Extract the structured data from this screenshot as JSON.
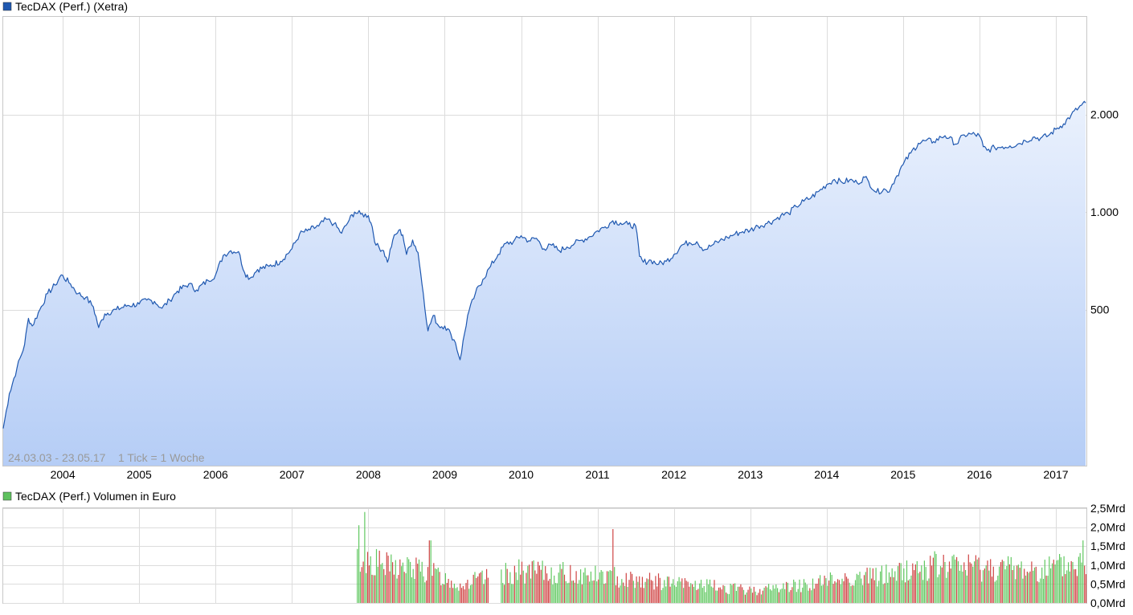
{
  "chart_data": [
    {
      "type": "area",
      "title": "TecDAX (Perf.) (Xetra)",
      "legend_color": "#1f58b0",
      "line_color": "#1f58b0",
      "fill_top": "#eaf1fd",
      "fill_bottom": "#b5cdf6",
      "yscale": "log",
      "ylim": [
        165,
        4000
      ],
      "xlim": [
        2003.22,
        2017.4
      ],
      "y_tick_values": [
        500,
        1000,
        2000
      ],
      "y_tick_labels": [
        "500",
        "1.000",
        "2.000"
      ],
      "x_tick_values": [
        2004,
        2005,
        2006,
        2007,
        2008,
        2009,
        2010,
        2011,
        2012,
        2013,
        2014,
        2015,
        2016,
        2017
      ],
      "x_tick_labels": [
        "2004",
        "2005",
        "2006",
        "2007",
        "2008",
        "2009",
        "2010",
        "2011",
        "2012",
        "2013",
        "2014",
        "2015",
        "2016",
        "2017"
      ],
      "date_range_note": "24.03.03 - 23.05.17",
      "tick_note": "1 Tick = 1 Woche",
      "grid": true,
      "points": [
        [
          2003.22,
          215
        ],
        [
          2003.3,
          275
        ],
        [
          2003.4,
          330
        ],
        [
          2003.5,
          390
        ],
        [
          2003.55,
          470
        ],
        [
          2003.6,
          445
        ],
        [
          2003.7,
          500
        ],
        [
          2003.8,
          560
        ],
        [
          2003.9,
          595
        ],
        [
          2003.98,
          640
        ],
        [
          2004.1,
          600
        ],
        [
          2004.2,
          560
        ],
        [
          2004.3,
          545
        ],
        [
          2004.4,
          510
        ],
        [
          2004.47,
          440
        ],
        [
          2004.55,
          485
        ],
        [
          2004.7,
          500
        ],
        [
          2004.85,
          515
        ],
        [
          2005.0,
          520
        ],
        [
          2005.1,
          535
        ],
        [
          2005.2,
          530
        ],
        [
          2005.3,
          505
        ],
        [
          2005.4,
          535
        ],
        [
          2005.5,
          570
        ],
        [
          2005.65,
          600
        ],
        [
          2005.75,
          575
        ],
        [
          2005.9,
          615
        ],
        [
          2006.0,
          640
        ],
        [
          2006.1,
          735
        ],
        [
          2006.2,
          760
        ],
        [
          2006.3,
          755
        ],
        [
          2006.38,
          650
        ],
        [
          2006.45,
          625
        ],
        [
          2006.55,
          665
        ],
        [
          2006.7,
          680
        ],
        [
          2006.85,
          705
        ],
        [
          2007.0,
          770
        ],
        [
          2007.1,
          855
        ],
        [
          2007.2,
          875
        ],
        [
          2007.35,
          905
        ],
        [
          2007.45,
          950
        ],
        [
          2007.55,
          920
        ],
        [
          2007.65,
          860
        ],
        [
          2007.75,
          945
        ],
        [
          2007.82,
          1000
        ],
        [
          2007.9,
          985
        ],
        [
          2008.0,
          975
        ],
        [
          2008.05,
          900
        ],
        [
          2008.1,
          790
        ],
        [
          2008.2,
          760
        ],
        [
          2008.25,
          700
        ],
        [
          2008.32,
          820
        ],
        [
          2008.4,
          880
        ],
        [
          2008.45,
          850
        ],
        [
          2008.5,
          740
        ],
        [
          2008.58,
          820
        ],
        [
          2008.65,
          750
        ],
        [
          2008.72,
          560
        ],
        [
          2008.78,
          430
        ],
        [
          2008.85,
          480
        ],
        [
          2008.92,
          445
        ],
        [
          2009.0,
          445
        ],
        [
          2009.08,
          420
        ],
        [
          2009.14,
          395
        ],
        [
          2009.2,
          350
        ],
        [
          2009.3,
          480
        ],
        [
          2009.4,
          560
        ],
        [
          2009.5,
          620
        ],
        [
          2009.6,
          680
        ],
        [
          2009.7,
          740
        ],
        [
          2009.8,
          800
        ],
        [
          2009.9,
          810
        ],
        [
          2010.0,
          845
        ],
        [
          2010.1,
          815
        ],
        [
          2010.2,
          830
        ],
        [
          2010.3,
          770
        ],
        [
          2010.4,
          790
        ],
        [
          2010.5,
          760
        ],
        [
          2010.6,
          780
        ],
        [
          2010.7,
          800
        ],
        [
          2010.8,
          820
        ],
        [
          2010.9,
          840
        ],
        [
          2011.0,
          875
        ],
        [
          2011.1,
          900
        ],
        [
          2011.2,
          940
        ],
        [
          2011.3,
          925
        ],
        [
          2011.4,
          915
        ],
        [
          2011.5,
          905
        ],
        [
          2011.55,
          730
        ],
        [
          2011.6,
          700
        ],
        [
          2011.7,
          710
        ],
        [
          2011.8,
          690
        ],
        [
          2011.9,
          705
        ],
        [
          2012.0,
          740
        ],
        [
          2012.1,
          790
        ],
        [
          2012.2,
          805
        ],
        [
          2012.3,
          810
        ],
        [
          2012.4,
          765
        ],
        [
          2012.5,
          790
        ],
        [
          2012.6,
          815
        ],
        [
          2012.7,
          835
        ],
        [
          2012.8,
          855
        ],
        [
          2012.9,
          870
        ],
        [
          2013.0,
          880
        ],
        [
          2013.1,
          905
        ],
        [
          2013.2,
          920
        ],
        [
          2013.3,
          940
        ],
        [
          2013.4,
          975
        ],
        [
          2013.5,
          990
        ],
        [
          2013.6,
          1040
        ],
        [
          2013.7,
          1080
        ],
        [
          2013.8,
          1110
        ],
        [
          2013.9,
          1160
        ],
        [
          2014.0,
          1215
        ],
        [
          2014.1,
          1260
        ],
        [
          2014.2,
          1235
        ],
        [
          2014.3,
          1255
        ],
        [
          2014.4,
          1230
        ],
        [
          2014.5,
          1280
        ],
        [
          2014.55,
          1240
        ],
        [
          2014.65,
          1150
        ],
        [
          2014.75,
          1180
        ],
        [
          2014.8,
          1150
        ],
        [
          2014.9,
          1270
        ],
        [
          2015.0,
          1400
        ],
        [
          2015.1,
          1520
        ],
        [
          2015.2,
          1630
        ],
        [
          2015.3,
          1660
        ],
        [
          2015.4,
          1650
        ],
        [
          2015.5,
          1700
        ],
        [
          2015.55,
          1720
        ],
        [
          2015.6,
          1690
        ],
        [
          2015.7,
          1620
        ],
        [
          2015.8,
          1730
        ],
        [
          2015.9,
          1740
        ],
        [
          2016.0,
          1720
        ],
        [
          2016.05,
          1590
        ],
        [
          2016.1,
          1550
        ],
        [
          2016.2,
          1580
        ],
        [
          2016.3,
          1590
        ],
        [
          2016.4,
          1600
        ],
        [
          2016.5,
          1620
        ],
        [
          2016.6,
          1660
        ],
        [
          2016.7,
          1700
        ],
        [
          2016.8,
          1690
        ],
        [
          2016.9,
          1720
        ],
        [
          2017.0,
          1800
        ],
        [
          2017.1,
          1870
        ],
        [
          2017.2,
          1990
        ],
        [
          2017.3,
          2100
        ],
        [
          2017.39,
          2170
        ]
      ]
    },
    {
      "type": "bar",
      "title": "TecDAX (Perf.) Volumen in Euro",
      "legend_color": "#5ec15e",
      "up_color": "#60c860",
      "down_color": "#d04444",
      "ylim": [
        0,
        2.5
      ],
      "y_tick_values": [
        0,
        0.5,
        1.0,
        1.5,
        2.0,
        2.5
      ],
      "y_tick_labels": [
        "0,0Mrd",
        "0,5Mrd",
        "1,0Mrd",
        "1,5Mrd",
        "2,0Mrd",
        "2,5Mrd"
      ],
      "xlim": [
        2003.22,
        2017.4
      ],
      "volume_start": 2007.85,
      "volume_gap": [
        2009.58,
        2009.73
      ],
      "volume_profile": [
        [
          2007.85,
          1.3
        ],
        [
          2008.0,
          1.25
        ],
        [
          2008.2,
          1.05
        ],
        [
          2008.5,
          1.0
        ],
        [
          2008.8,
          0.9
        ],
        [
          2009.0,
          0.7
        ],
        [
          2009.2,
          0.5
        ],
        [
          2009.4,
          0.65
        ],
        [
          2009.58,
          0.7
        ],
        [
          2009.73,
          0.8
        ],
        [
          2010.0,
          0.9
        ],
        [
          2010.4,
          0.85
        ],
        [
          2010.8,
          0.8
        ],
        [
          2011.2,
          0.75
        ],
        [
          2011.6,
          0.65
        ],
        [
          2012.0,
          0.55
        ],
        [
          2012.4,
          0.5
        ],
        [
          2012.8,
          0.4
        ],
        [
          2013.0,
          0.35
        ],
        [
          2013.4,
          0.45
        ],
        [
          2013.8,
          0.55
        ],
        [
          2014.2,
          0.7
        ],
        [
          2014.6,
          0.75
        ],
        [
          2015.0,
          0.9
        ],
        [
          2015.4,
          1.05
        ],
        [
          2015.8,
          1.05
        ],
        [
          2016.2,
          1.0
        ],
        [
          2016.6,
          0.95
        ],
        [
          2017.0,
          1.0
        ],
        [
          2017.39,
          1.15
        ]
      ],
      "peaks": [
        [
          2007.87,
          2.05
        ],
        [
          2007.95,
          2.4
        ],
        [
          2008.8,
          1.65
        ],
        [
          2011.2,
          1.95
        ],
        [
          2017.35,
          1.65
        ]
      ]
    }
  ]
}
